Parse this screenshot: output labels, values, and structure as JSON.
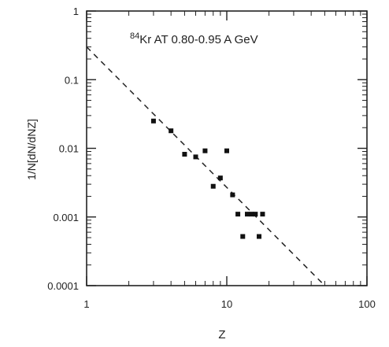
{
  "chart_data": {
    "type": "scatter",
    "title_sup": "84",
    "title_main": "Kr AT 0.80-0.95 A GeV",
    "xlabel": "Z",
    "ylabel": "1/N[dN/dNZ]",
    "x_scale": "log",
    "y_scale": "log",
    "xlim": [
      1,
      100
    ],
    "ylim": [
      0.0001,
      1
    ],
    "x_ticks": [
      {
        "value": 1,
        "label": "1"
      },
      {
        "value": 10,
        "label": "10"
      },
      {
        "value": 100,
        "label": "100"
      }
    ],
    "y_ticks": [
      {
        "value": 1,
        "label": "1"
      },
      {
        "value": 0.1,
        "label": "0.1"
      },
      {
        "value": 0.01,
        "label": "0.01"
      },
      {
        "value": 0.001,
        "label": "0.001"
      },
      {
        "value": 0.0001,
        "label": "0.0001"
      }
    ],
    "grid": false,
    "series": [
      {
        "points": [
          {
            "x": 3,
            "y": 0.025
          },
          {
            "x": 4,
            "y": 0.018
          },
          {
            "x": 5,
            "y": 0.0082
          },
          {
            "x": 6,
            "y": 0.0075
          },
          {
            "x": 7,
            "y": 0.0092
          },
          {
            "x": 8,
            "y": 0.0028
          },
          {
            "x": 9,
            "y": 0.0037
          },
          {
            "x": 10,
            "y": 0.0092
          },
          {
            "x": 11,
            "y": 0.0021
          },
          {
            "x": 12,
            "y": 0.0011
          },
          {
            "x": 13,
            "y": 0.00052
          },
          {
            "x": 14,
            "y": 0.0011
          },
          {
            "x": 15,
            "y": 0.0011
          },
          {
            "x": 16,
            "y": 0.0011
          },
          {
            "x": 17,
            "y": 0.00052
          },
          {
            "x": 18,
            "y": 0.0011
          }
        ]
      }
    ],
    "fit_line": {
      "style": "dashed",
      "points": [
        {
          "x": 1,
          "y": 0.3
        },
        {
          "x": 50,
          "y": 0.0001
        }
      ]
    }
  }
}
